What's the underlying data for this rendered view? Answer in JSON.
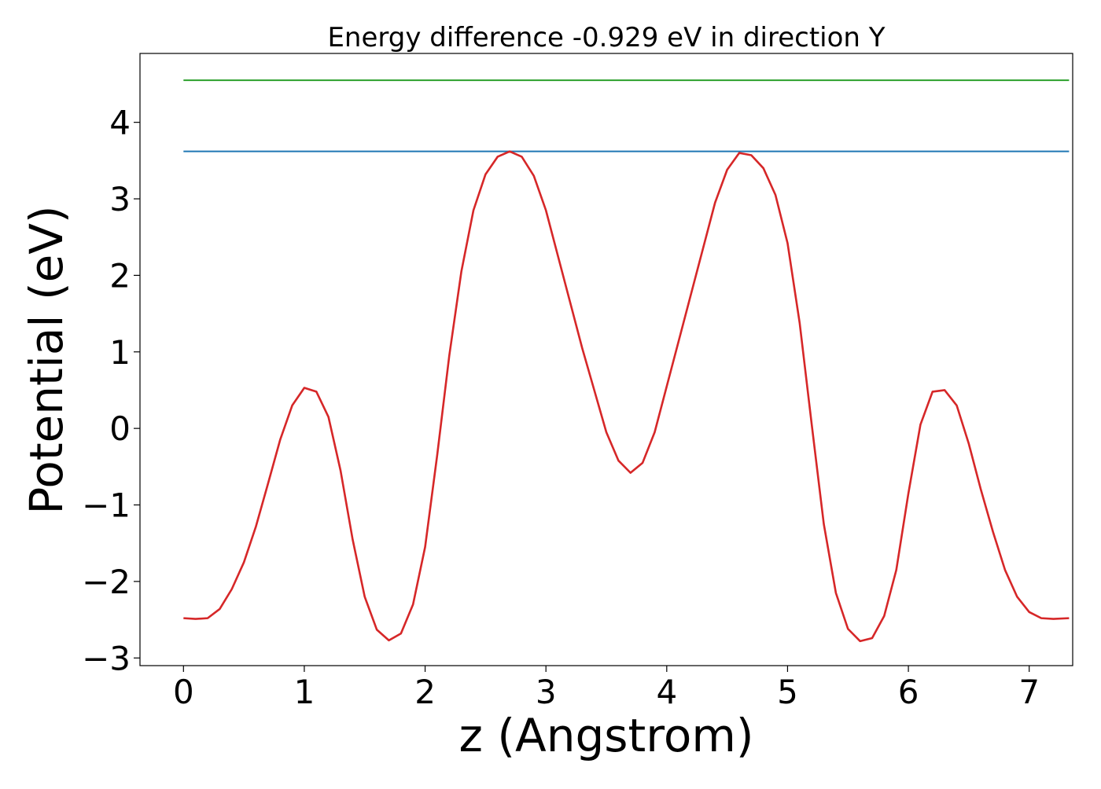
{
  "chart_data": {
    "type": "line",
    "title": "Energy difference -0.929 eV in direction Y",
    "xlabel": "z (Angstrom)",
    "ylabel": "Potential (eV)",
    "xlim": [
      -0.36,
      7.36
    ],
    "ylim": [
      -3.1,
      4.9
    ],
    "xticks": [
      0,
      1,
      2,
      3,
      4,
      5,
      6,
      7
    ],
    "yticks": [
      -3,
      -2,
      -1,
      0,
      1,
      2,
      3,
      4
    ],
    "grid": false,
    "series": [
      {
        "color": "#2ca02c",
        "x": [
          0.0,
          7.33
        ],
        "y": [
          4.55,
          4.55
        ]
      },
      {
        "color": "#1f77b4",
        "x": [
          0.0,
          7.33
        ],
        "y": [
          3.62,
          3.62
        ]
      },
      {
        "color": "#d62728",
        "x": [
          0.0,
          0.1,
          0.2,
          0.3,
          0.4,
          0.5,
          0.6,
          0.7,
          0.8,
          0.9,
          1.0,
          1.1,
          1.2,
          1.3,
          1.4,
          1.5,
          1.6,
          1.7,
          1.8,
          1.9,
          2.0,
          2.1,
          2.2,
          2.3,
          2.4,
          2.5,
          2.6,
          2.7,
          2.8,
          2.9,
          3.0,
          3.1,
          3.2,
          3.3,
          3.4,
          3.5,
          3.6,
          3.7,
          3.8,
          3.9,
          4.0,
          4.1,
          4.2,
          4.3,
          4.4,
          4.5,
          4.6,
          4.7,
          4.8,
          4.9,
          5.0,
          5.1,
          5.2,
          5.3,
          5.4,
          5.5,
          5.6,
          5.7,
          5.8,
          5.9,
          6.0,
          6.1,
          6.2,
          6.3,
          6.4,
          6.5,
          6.6,
          6.7,
          6.8,
          6.9,
          7.0,
          7.1,
          7.2,
          7.33
        ],
        "y": [
          -2.48,
          -2.49,
          -2.48,
          -2.36,
          -2.1,
          -1.75,
          -1.28,
          -0.72,
          -0.15,
          0.3,
          0.53,
          0.48,
          0.15,
          -0.55,
          -1.45,
          -2.2,
          -2.63,
          -2.77,
          -2.68,
          -2.3,
          -1.55,
          -0.35,
          0.95,
          2.05,
          2.85,
          3.32,
          3.55,
          3.62,
          3.55,
          3.3,
          2.85,
          2.25,
          1.65,
          1.05,
          0.5,
          -0.05,
          -0.42,
          -0.58,
          -0.45,
          -0.05,
          0.55,
          1.15,
          1.75,
          2.35,
          2.95,
          3.38,
          3.6,
          3.57,
          3.4,
          3.05,
          2.42,
          1.38,
          0.05,
          -1.25,
          -2.15,
          -2.62,
          -2.78,
          -2.74,
          -2.45,
          -1.85,
          -0.85,
          0.05,
          0.48,
          0.5,
          0.3,
          -0.2,
          -0.8,
          -1.35,
          -1.85,
          -2.2,
          -2.4,
          -2.48,
          -2.49,
          -2.48
        ]
      }
    ]
  }
}
